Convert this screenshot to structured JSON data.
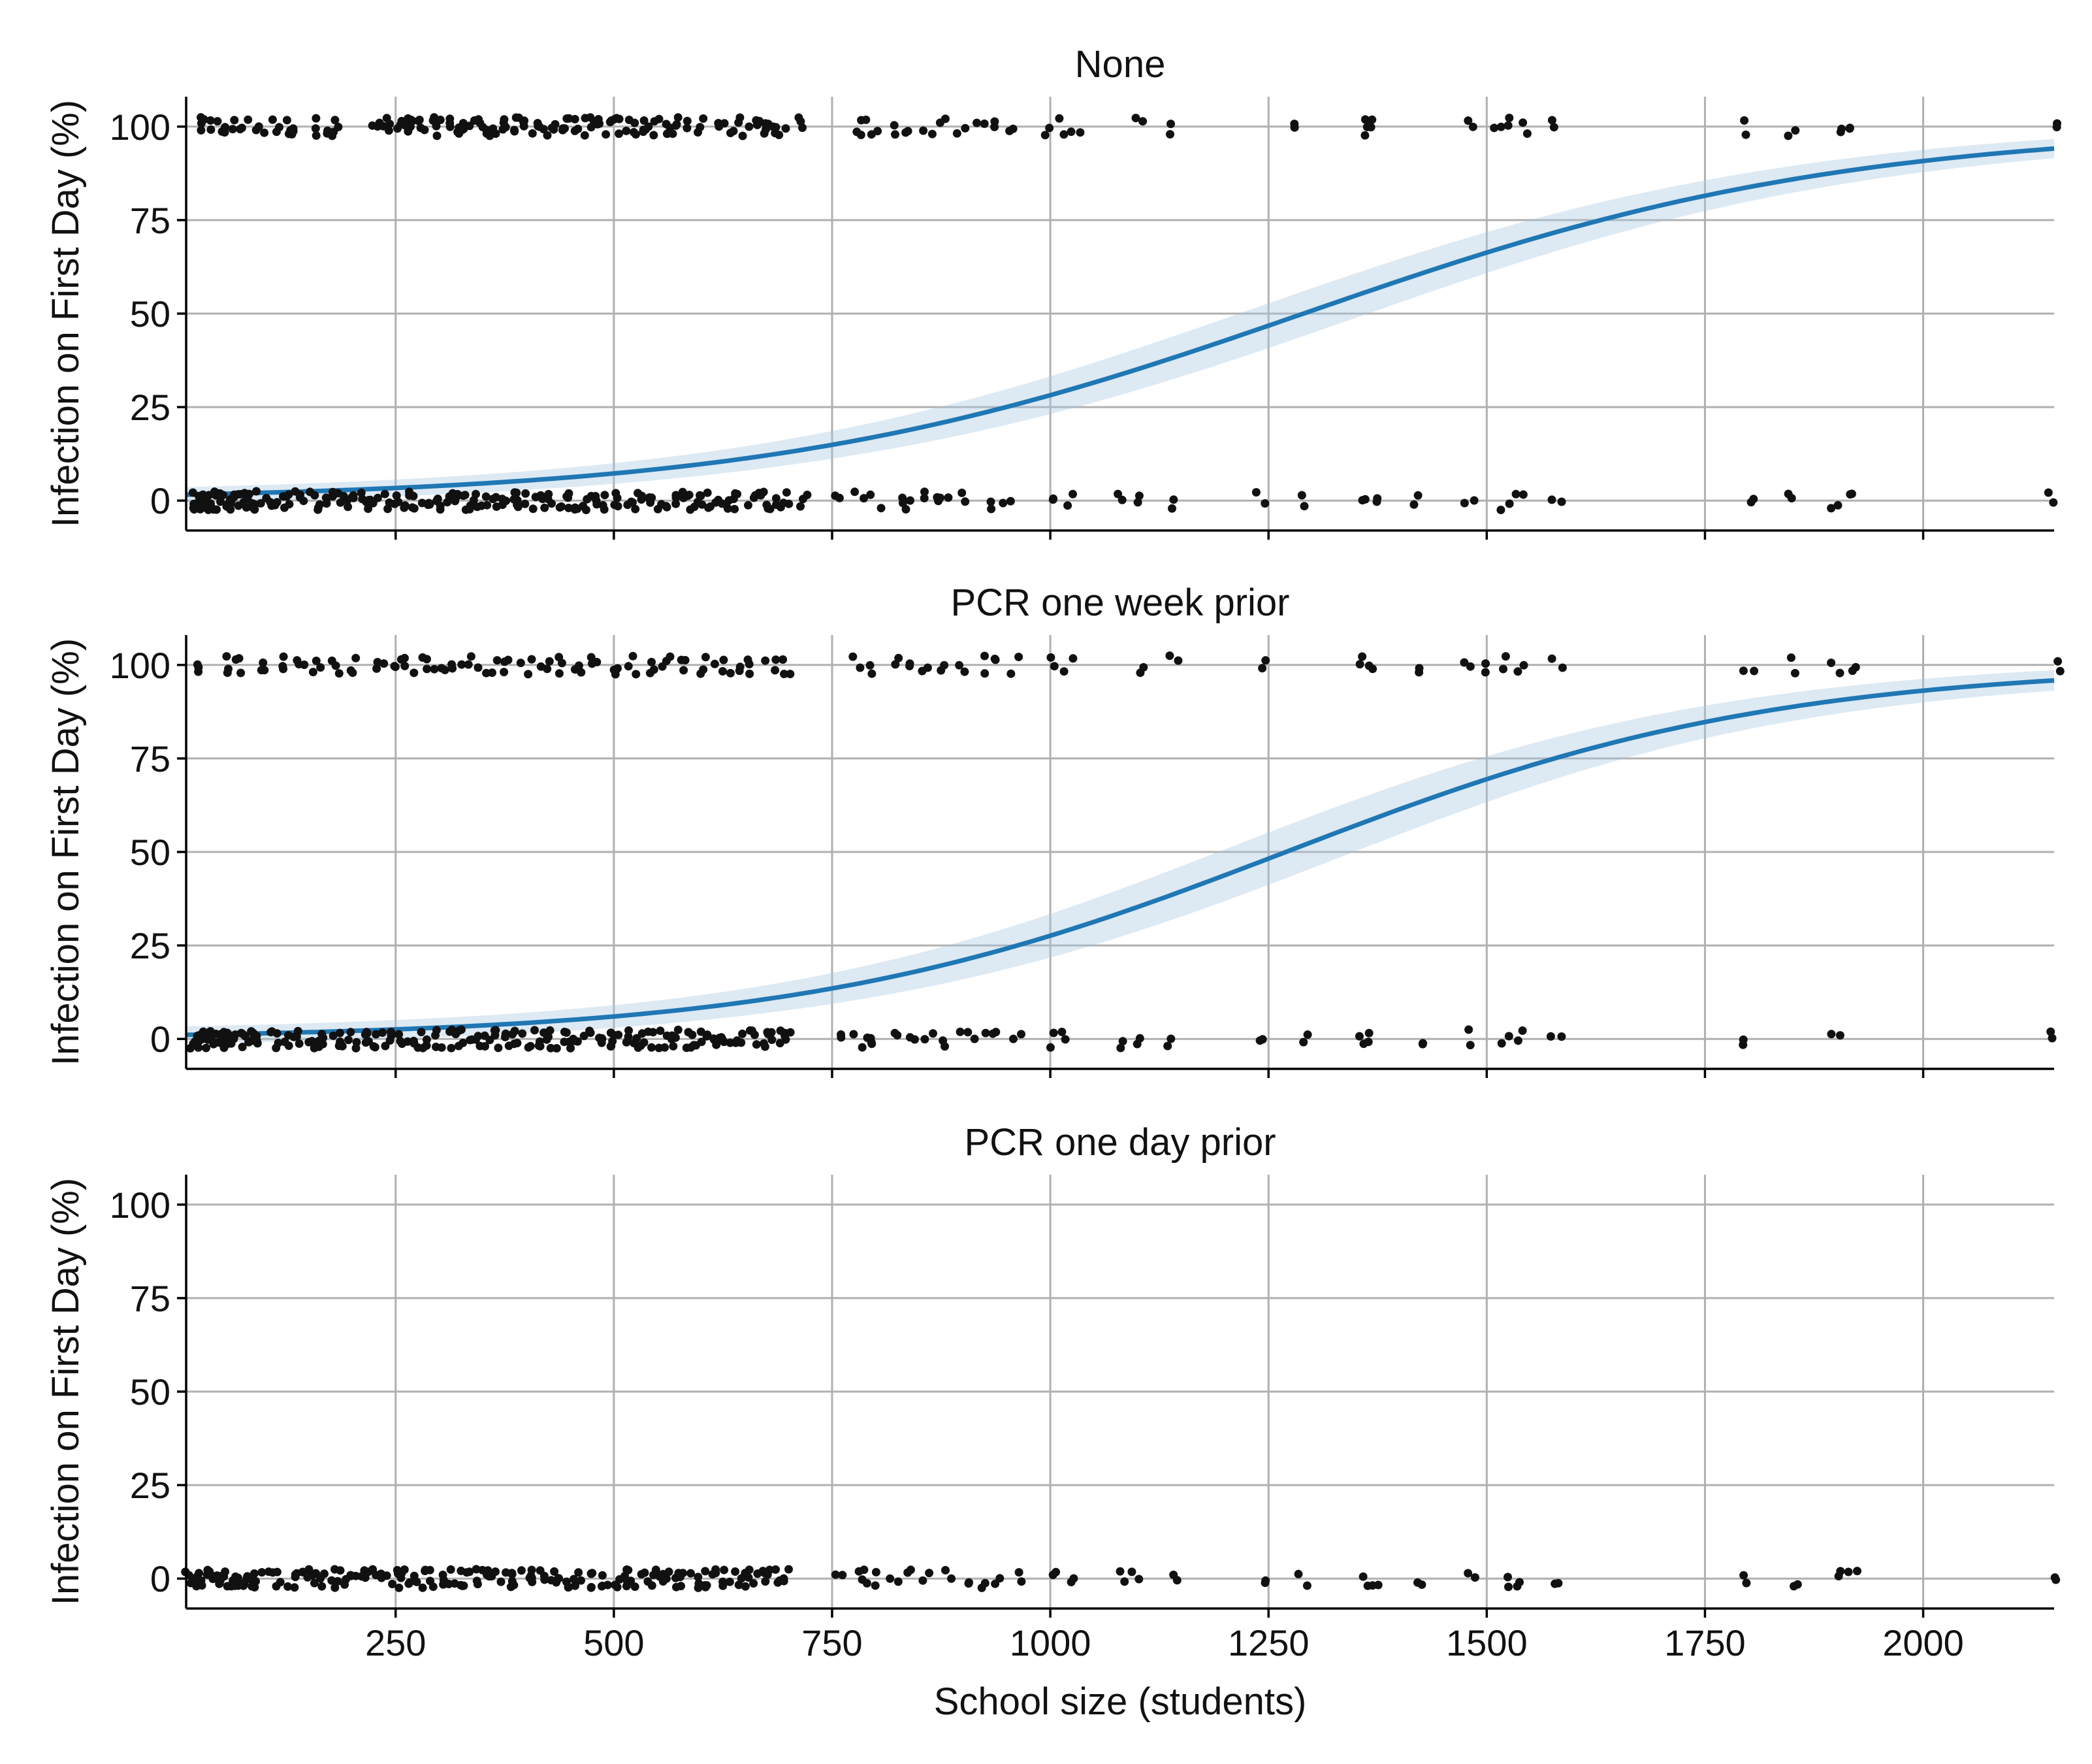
{
  "chart_data": [
    {
      "type": "scatter",
      "title": "None",
      "xlabel": "",
      "ylabel": "Infection on First Day (%)",
      "xlim": [
        10,
        2150
      ],
      "ylim": [
        -8,
        108
      ],
      "xticks": [
        250,
        500,
        750,
        1000,
        1250,
        1500,
        1750,
        2000
      ],
      "yticks": [
        0,
        25,
        50,
        75,
        100
      ],
      "grid": true,
      "series": [
        {
          "type": "scatter",
          "points_at_100_x": [
            25,
            35,
            50,
            60,
            75,
            95,
            110,
            125,
            130,
            160,
            175,
            180,
            230,
            240,
            250,
            260,
            265,
            270,
            280,
            290,
            300,
            310,
            320,
            330,
            340,
            350,
            360,
            370,
            380,
            390,
            400,
            410,
            420,
            430,
            440,
            450,
            460,
            470,
            480,
            490,
            500,
            510,
            520,
            530,
            540,
            550,
            560,
            570,
            580,
            600,
            620,
            640,
            650,
            660,
            670,
            680,
            690,
            710,
            780,
            790,
            800,
            820,
            840,
            860,
            880,
            900,
            920,
            940,
            960,
            1000,
            1010,
            1030,
            1100,
            1140,
            1280,
            1360,
            1365,
            1370,
            1480,
            1510,
            1520,
            1540,
            1580,
            1800,
            1850,
            1900,
            1920,
            2150
          ],
          "points_at_0_x": [
            15,
            20,
            25,
            30,
            35,
            40,
            45,
            50,
            55,
            60,
            65,
            70,
            75,
            80,
            85,
            90,
            105,
            115,
            125,
            135,
            145,
            155,
            165,
            175,
            185,
            195,
            205,
            215,
            225,
            235,
            245,
            255,
            265,
            275,
            285,
            295,
            305,
            315,
            325,
            335,
            345,
            355,
            365,
            375,
            385,
            395,
            405,
            415,
            425,
            435,
            445,
            455,
            465,
            475,
            485,
            495,
            505,
            515,
            525,
            535,
            545,
            555,
            565,
            575,
            585,
            595,
            605,
            615,
            625,
            635,
            645,
            655,
            665,
            675,
            685,
            695,
            715,
            760,
            780,
            800,
            830,
            840,
            860,
            870,
            880,
            900,
            930,
            950,
            1010,
            1020,
            1080,
            1100,
            1140,
            1240,
            1290,
            1360,
            1370,
            1420,
            1480,
            1520,
            1540,
            1580,
            1800,
            1850,
            1900,
            1920,
            2150
          ]
        },
        {
          "type": "line",
          "logistic_midpoint": 1290,
          "logistic_scale": 310,
          "ci_halfwidth": 6
        }
      ]
    },
    {
      "type": "scatter",
      "title": "PCR one week prior",
      "xlabel": "",
      "ylabel": "Infection on First Day (%)",
      "xlim": [
        10,
        2150
      ],
      "ylim": [
        -8,
        108
      ],
      "xticks": [
        250,
        500,
        750,
        1000,
        1250,
        1500,
        1750,
        2000
      ],
      "yticks": [
        0,
        25,
        50,
        75,
        100
      ],
      "grid": true,
      "series": [
        {
          "type": "scatter",
          "points_at_100_x": [
            30,
            55,
            70,
            100,
            115,
            140,
            160,
            180,
            200,
            230,
            250,
            265,
            280,
            300,
            320,
            340,
            360,
            380,
            400,
            420,
            440,
            460,
            480,
            500,
            520,
            540,
            560,
            580,
            600,
            620,
            640,
            660,
            680,
            700,
            780,
            800,
            820,
            840,
            860,
            880,
            900,
            920,
            940,
            960,
            1000,
            1020,
            1100,
            1140,
            1240,
            1360,
            1370,
            1420,
            1480,
            1500,
            1520,
            1540,
            1580,
            1800,
            1850,
            1900,
            1920,
            2150
          ],
          "points_at_0_x": [
            15,
            20,
            25,
            30,
            35,
            40,
            45,
            50,
            55,
            60,
            65,
            70,
            75,
            80,
            85,
            90,
            110,
            120,
            130,
            140,
            150,
            160,
            170,
            180,
            190,
            200,
            210,
            220,
            230,
            240,
            250,
            260,
            270,
            280,
            290,
            300,
            310,
            320,
            330,
            340,
            350,
            360,
            370,
            380,
            390,
            400,
            410,
            420,
            430,
            440,
            450,
            460,
            470,
            480,
            490,
            500,
            510,
            520,
            530,
            540,
            550,
            560,
            570,
            580,
            590,
            600,
            610,
            620,
            630,
            640,
            650,
            660,
            670,
            680,
            690,
            700,
            760,
            780,
            790,
            800,
            820,
            840,
            860,
            880,
            900,
            920,
            940,
            960,
            1000,
            1020,
            1080,
            1100,
            1140,
            1240,
            1290,
            1360,
            1370,
            1420,
            1480,
            1520,
            1540,
            1580,
            1800,
            1900,
            2150
          ]
        },
        {
          "type": "line",
          "logistic_midpoint": 1270,
          "logistic_scale": 280,
          "ci_halfwidth": 7
        }
      ]
    },
    {
      "type": "scatter",
      "title": "PCR one day prior",
      "xlabel": "School size (students)",
      "ylabel": "Infection on First Day (%)",
      "xlim": [
        10,
        2150
      ],
      "ylim": [
        -8,
        108
      ],
      "xticks": [
        250,
        500,
        750,
        1000,
        1250,
        1500,
        1750,
        2000
      ],
      "yticks": [
        0,
        25,
        50,
        75,
        100
      ],
      "grid": true,
      "series": [
        {
          "type": "scatter",
          "points_at_100_x": [],
          "points_at_0_x": [
            15,
            20,
            25,
            30,
            35,
            40,
            45,
            50,
            55,
            60,
            65,
            70,
            75,
            80,
            85,
            90,
            110,
            120,
            130,
            140,
            150,
            160,
            170,
            180,
            190,
            200,
            210,
            220,
            230,
            240,
            250,
            260,
            270,
            280,
            290,
            300,
            310,
            320,
            330,
            340,
            350,
            360,
            370,
            380,
            390,
            400,
            410,
            420,
            430,
            440,
            450,
            460,
            470,
            480,
            490,
            500,
            510,
            520,
            530,
            540,
            550,
            560,
            570,
            580,
            590,
            600,
            610,
            620,
            630,
            640,
            650,
            660,
            670,
            680,
            690,
            700,
            760,
            780,
            790,
            800,
            820,
            840,
            860,
            880,
            900,
            920,
            940,
            960,
            1000,
            1020,
            1080,
            1100,
            1140,
            1240,
            1290,
            1360,
            1370,
            1420,
            1480,
            1520,
            1540,
            1580,
            1800,
            1850,
            1900,
            1920,
            2150
          ]
        }
      ]
    }
  ]
}
